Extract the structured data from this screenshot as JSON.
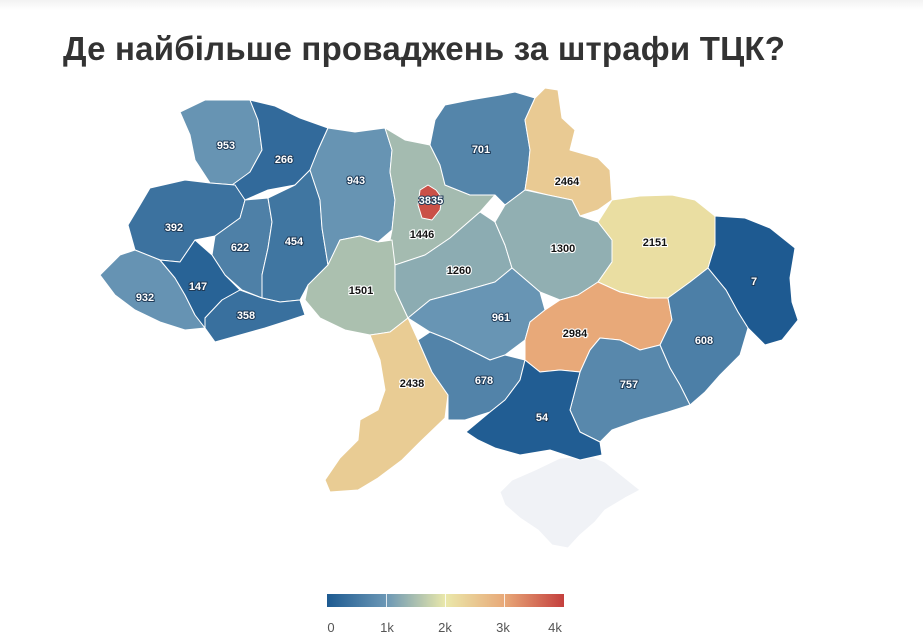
{
  "title": "Де найбільше проваджень за штрафи ТЦК?",
  "legend": {
    "labels": [
      "0",
      "1k",
      "2k",
      "3k",
      "4k"
    ],
    "min": 0,
    "max": 4000,
    "colors": [
      "#1d5a91",
      "#6b97b5",
      "#eae8aa",
      "#e8a878",
      "#c43f3d"
    ]
  },
  "regions": [
    {
      "id": "volynska",
      "value": "953"
    },
    {
      "id": "rivnenska",
      "value": "266"
    },
    {
      "id": "lvivska",
      "value": "392"
    },
    {
      "id": "ternopilska",
      "value": "622"
    },
    {
      "id": "khmelnytska",
      "value": "454"
    },
    {
      "id": "zakarpatska",
      "value": "932"
    },
    {
      "id": "ivano-frankivska",
      "value": "147"
    },
    {
      "id": "chernivetska",
      "value": "358"
    },
    {
      "id": "zhytomyrska",
      "value": "943"
    },
    {
      "id": "kyiv-city",
      "value": "3835"
    },
    {
      "id": "kyivska",
      "value": "1446"
    },
    {
      "id": "chernihivska",
      "value": "701"
    },
    {
      "id": "sumska",
      "value": "2464"
    },
    {
      "id": "vinnytska",
      "value": "1501"
    },
    {
      "id": "cherkaska",
      "value": "1260"
    },
    {
      "id": "poltavska",
      "value": "1300"
    },
    {
      "id": "kharkivska",
      "value": "2151"
    },
    {
      "id": "luhanska",
      "value": "7"
    },
    {
      "id": "kirovohradska",
      "value": "961"
    },
    {
      "id": "dnipropetrovska",
      "value": "2984"
    },
    {
      "id": "donetska",
      "value": "608"
    },
    {
      "id": "odeska",
      "value": "2438"
    },
    {
      "id": "mykolaivska",
      "value": "678"
    },
    {
      "id": "zaporizka",
      "value": "757"
    },
    {
      "id": "khersonska",
      "value": "54"
    }
  ],
  "no_data_color": "#f0f2f6"
}
